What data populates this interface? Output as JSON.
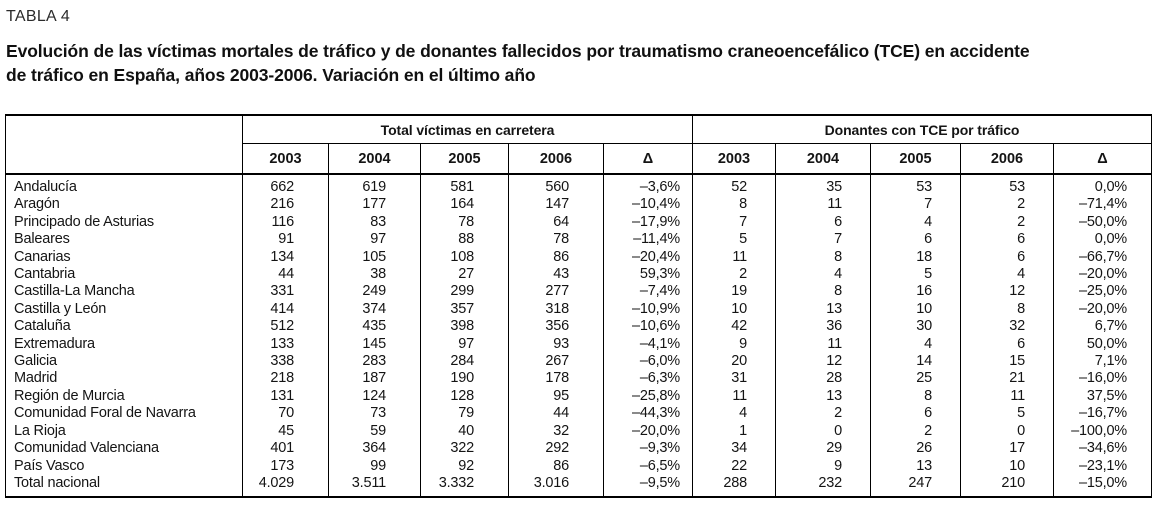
{
  "label": "TABLA 4",
  "title_lines": [
    "Evolución de las víctimas mortales de tráfico y de donantes fallecidos por traumatismo craneoencefálico (TCE) en accidente",
    "de tráfico en España, años 2003-2006. Variación en el último año"
  ],
  "table": {
    "group_headers": [
      "Total víctimas en carretera",
      "Donantes con TCE por tráfico"
    ],
    "year_headers": [
      "2003",
      "2004",
      "2005",
      "2006",
      "Δ"
    ],
    "rows": [
      {
        "region": "Andalucía",
        "victimas": [
          "662",
          "619",
          "581",
          "560",
          "–3,6%"
        ],
        "donantes": [
          "52",
          "35",
          "53",
          "53",
          "0,0%"
        ]
      },
      {
        "region": "Aragón",
        "victimas": [
          "216",
          "177",
          "164",
          "147",
          "–10,4%"
        ],
        "donantes": [
          "8",
          "11",
          "7",
          "2",
          "–71,4%"
        ]
      },
      {
        "region": "Principado de Asturias",
        "victimas": [
          "116",
          "83",
          "78",
          "64",
          "–17,9%"
        ],
        "donantes": [
          "7",
          "6",
          "4",
          "2",
          "–50,0%"
        ]
      },
      {
        "region": "Baleares",
        "victimas": [
          "91",
          "97",
          "88",
          "78",
          "–11,4%"
        ],
        "donantes": [
          "5",
          "7",
          "6",
          "6",
          "0,0%"
        ]
      },
      {
        "region": "Canarias",
        "victimas": [
          "134",
          "105",
          "108",
          "86",
          "–20,4%"
        ],
        "donantes": [
          "11",
          "8",
          "18",
          "6",
          "–66,7%"
        ]
      },
      {
        "region": "Cantabria",
        "victimas": [
          "44",
          "38",
          "27",
          "43",
          "59,3%"
        ],
        "donantes": [
          "2",
          "4",
          "5",
          "4",
          "–20,0%"
        ]
      },
      {
        "region": "Castilla-La Mancha",
        "victimas": [
          "331",
          "249",
          "299",
          "277",
          "–7,4%"
        ],
        "donantes": [
          "19",
          "8",
          "16",
          "12",
          "–25,0%"
        ]
      },
      {
        "region": "Castilla y León",
        "victimas": [
          "414",
          "374",
          "357",
          "318",
          "–10,9%"
        ],
        "donantes": [
          "10",
          "13",
          "10",
          "8",
          "–20,0%"
        ]
      },
      {
        "region": "Cataluña",
        "victimas": [
          "512",
          "435",
          "398",
          "356",
          "–10,6%"
        ],
        "donantes": [
          "42",
          "36",
          "30",
          "32",
          "6,7%"
        ]
      },
      {
        "region": "Extremadura",
        "victimas": [
          "133",
          "145",
          "97",
          "93",
          "–4,1%"
        ],
        "donantes": [
          "9",
          "11",
          "4",
          "6",
          "50,0%"
        ]
      },
      {
        "region": "Galicia",
        "victimas": [
          "338",
          "283",
          "284",
          "267",
          "–6,0%"
        ],
        "donantes": [
          "20",
          "12",
          "14",
          "15",
          "7,1%"
        ]
      },
      {
        "region": "Madrid",
        "victimas": [
          "218",
          "187",
          "190",
          "178",
          "–6,3%"
        ],
        "donantes": [
          "31",
          "28",
          "25",
          "21",
          "–16,0%"
        ]
      },
      {
        "region": "Región de Murcia",
        "victimas": [
          "131",
          "124",
          "128",
          "95",
          "–25,8%"
        ],
        "donantes": [
          "11",
          "13",
          "8",
          "11",
          "37,5%"
        ]
      },
      {
        "region": "Comunidad Foral de Navarra",
        "victimas": [
          "70",
          "73",
          "79",
          "44",
          "–44,3%"
        ],
        "donantes": [
          "4",
          "2",
          "6",
          "5",
          "–16,7%"
        ]
      },
      {
        "region": "La Rioja",
        "victimas": [
          "45",
          "59",
          "40",
          "32",
          "–20,0%"
        ],
        "donantes": [
          "1",
          "0",
          "2",
          "0",
          "–100,0%"
        ]
      },
      {
        "region": "Comunidad Valenciana",
        "victimas": [
          "401",
          "364",
          "322",
          "292",
          "–9,3%"
        ],
        "donantes": [
          "34",
          "29",
          "26",
          "17",
          "–34,6%"
        ]
      },
      {
        "region": "País Vasco",
        "victimas": [
          "173",
          "99",
          "92",
          "86",
          "–6,5%"
        ],
        "donantes": [
          "22",
          "9",
          "13",
          "10",
          "–23,1%"
        ]
      },
      {
        "region": "Total nacional",
        "victimas": [
          "4.029",
          "3.511",
          "3.332",
          "3.016",
          "–9,5%"
        ],
        "donantes": [
          "288",
          "232",
          "247",
          "210",
          "–15,0%"
        ]
      }
    ]
  }
}
